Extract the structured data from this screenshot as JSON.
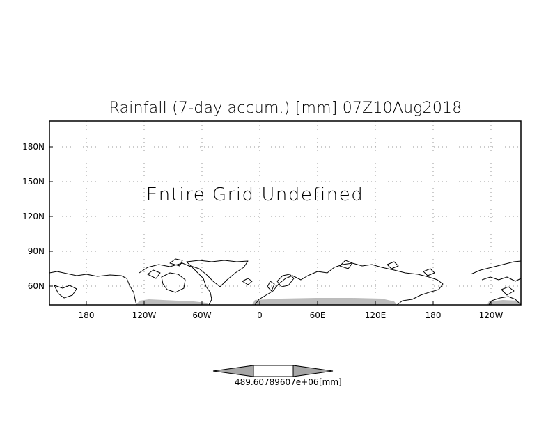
{
  "map": {
    "title": "Rainfall (7-day accum.) [mm] 07Z10Aug2018",
    "notice": "Entire Grid Undefined",
    "lat_ticks": [
      "180N",
      "150N",
      "120N",
      "90N",
      "60N"
    ],
    "lon_ticks": [
      "180",
      "120W",
      "60W",
      "0",
      "60E",
      "120E",
      "180",
      "120W"
    ],
    "colors": {
      "coast": "#000000",
      "grid": "#9a9a9a",
      "shade": "#bcbcbc",
      "frame": "#000000"
    }
  },
  "colorbar": {
    "labels": [
      "489.60789607e+06",
      "[mm]"
    ],
    "colors": {
      "left_triangle": "#a6a6a6",
      "center": "#ffffff",
      "right_triangle": "#a6a6a6"
    }
  }
}
